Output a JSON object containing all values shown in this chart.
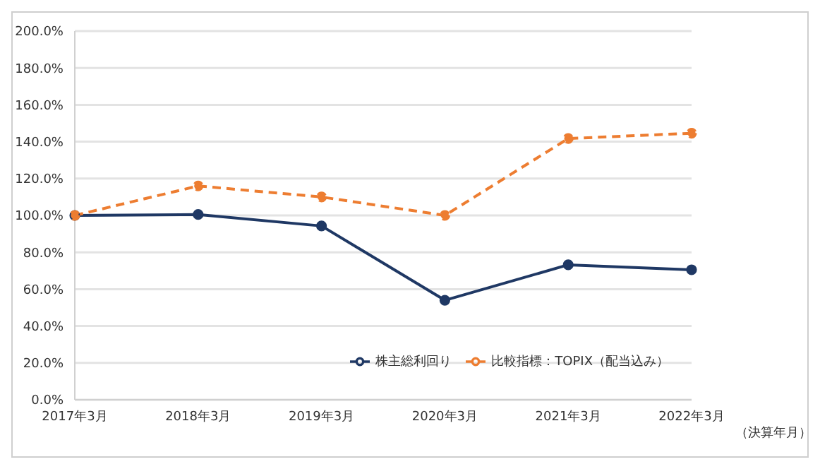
{
  "chart_data": {
    "type": "line",
    "xlabel": "（決算年月）",
    "categories": [
      "2017年3月",
      "2018年3月",
      "2019年3月",
      "2020年3月",
      "2021年3月",
      "2022年3月"
    ],
    "series": [
      {
        "name": "株主総利回り",
        "color": "#1f3864",
        "line_style": "solid",
        "values": [
          100,
          100.5,
          94.3,
          54,
          73.2,
          70.5
        ]
      },
      {
        "name": "比較指標：TOPIX（配当込み）",
        "color": "#ed7d31",
        "line_style": "dashed",
        "values": [
          100,
          116,
          110,
          100,
          141.7,
          144.6
        ]
      }
    ],
    "ylim": [
      0,
      200
    ],
    "yticks": [
      {
        "value": 0,
        "label": "0.0%"
      },
      {
        "value": 20,
        "label": "20.0%"
      },
      {
        "value": 40,
        "label": "40.0%"
      },
      {
        "value": 60,
        "label": "60.0%"
      },
      {
        "value": 80,
        "label": "80.0%"
      },
      {
        "value": 100,
        "label": "100.0%"
      },
      {
        "value": 120,
        "label": "120.0%"
      },
      {
        "value": 140,
        "label": "140.0%"
      },
      {
        "value": 160,
        "label": "160.0%"
      },
      {
        "value": 180,
        "label": "180.0%"
      },
      {
        "value": 200,
        "label": "200.0%"
      }
    ],
    "grid": "y",
    "legend": "bottom right",
    "marker": "circle"
  }
}
